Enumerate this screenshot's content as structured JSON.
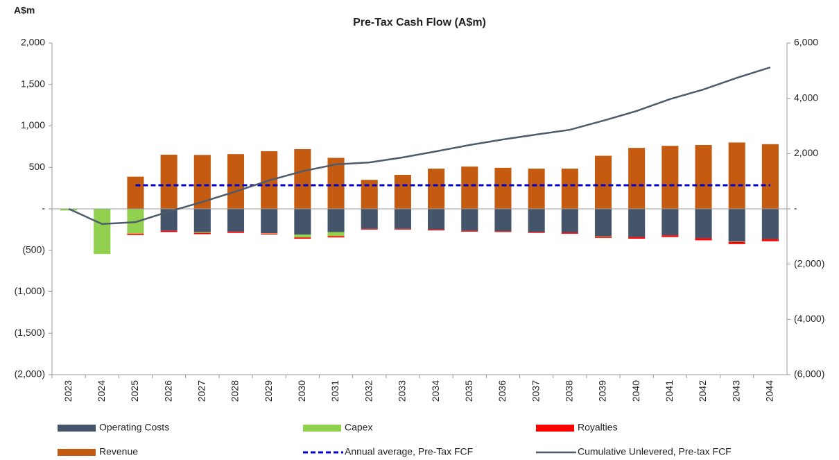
{
  "chart_data": {
    "type": "bar",
    "title": "Pre-Tax Cash Flow (A$m)",
    "y_label": "A$m",
    "categories": [
      "2023",
      "2024",
      "2025",
      "2026",
      "2027",
      "2028",
      "2029",
      "2030",
      "2031",
      "2032",
      "2033",
      "2034",
      "2035",
      "2036",
      "2037",
      "2038",
      "2039",
      "2040",
      "2041",
      "2042",
      "2043",
      "2044"
    ],
    "series": [
      {
        "name": "Operating Costs",
        "color": "#44546a",
        "values": [
          0,
          0,
          0,
          -265,
          -280,
          -275,
          -295,
          -310,
          -280,
          -240,
          -240,
          -250,
          -265,
          -270,
          -280,
          -285,
          -330,
          -340,
          -320,
          -355,
          -395,
          -365
        ]
      },
      {
        "name": "Capex",
        "color": "#92d050",
        "values": [
          -20,
          -545,
          -300,
          0,
          -10,
          0,
          -5,
          -35,
          -50,
          0,
          0,
          0,
          0,
          0,
          0,
          0,
          -5,
          0,
          0,
          0,
          -5,
          0
        ]
      },
      {
        "name": "Royalties",
        "color": "#ff0000",
        "values": [
          0,
          0,
          -15,
          -15,
          -15,
          -15,
          -10,
          -15,
          -15,
          -10,
          -10,
          -10,
          -10,
          -10,
          -10,
          -15,
          -15,
          -20,
          -20,
          -25,
          -25,
          -25
        ]
      },
      {
        "name": "Revenue",
        "color": "#c55a11",
        "values": [
          0,
          0,
          388,
          653,
          650,
          660,
          695,
          720,
          615,
          350,
          410,
          485,
          510,
          495,
          485,
          485,
          640,
          735,
          760,
          770,
          800,
          780
        ]
      },
      {
        "name": "Annual average, Pre-Tax FCF",
        "color": "#0000cc",
        "type": "line",
        "dashed": true,
        "values": [
          null,
          null,
          285,
          285,
          285,
          285,
          285,
          285,
          285,
          285,
          285,
          285,
          285,
          285,
          285,
          285,
          285,
          285,
          285,
          285,
          285,
          285
        ]
      },
      {
        "name": "Cumulative Unlevered, Pre-tax FCF",
        "color": "#4d5b6a",
        "type": "line",
        "axis": "y2",
        "values": [
          0,
          -550,
          -480,
          -100,
          250,
          630,
          1030,
          1360,
          1610,
          1680,
          1860,
          2080,
          2310,
          2510,
          2690,
          2860,
          3190,
          3540,
          3970,
          4320,
          4740,
          5120
        ]
      }
    ],
    "ylim": [
      -2000,
      2000
    ],
    "yticks": [
      {
        "value": -2000,
        "label": "(2,000)"
      },
      {
        "value": -1500,
        "label": "(1,500)"
      },
      {
        "value": -1000,
        "label": "(1,000)"
      },
      {
        "value": -500,
        "label": "(500)"
      },
      {
        "value": 0,
        "label": "-"
      },
      500,
      {
        "value": 1000,
        "label": "1,000"
      },
      {
        "value": 1500,
        "label": "1,500"
      },
      {
        "value": 2000,
        "label": "2,000"
      }
    ],
    "y2lim": [
      -6000,
      6000
    ],
    "y2ticks": [
      {
        "value": -6000,
        "label": "(6,000)"
      },
      {
        "value": -4000,
        "label": "(4,000)"
      },
      {
        "value": -2000,
        "label": "(2,000)"
      },
      {
        "value": 0,
        "label": "-"
      },
      {
        "value": 2000,
        "label": "2,000"
      },
      {
        "value": 4000,
        "label": "4,000"
      },
      {
        "value": 6000,
        "label": "6,000"
      }
    ],
    "grid": false
  }
}
